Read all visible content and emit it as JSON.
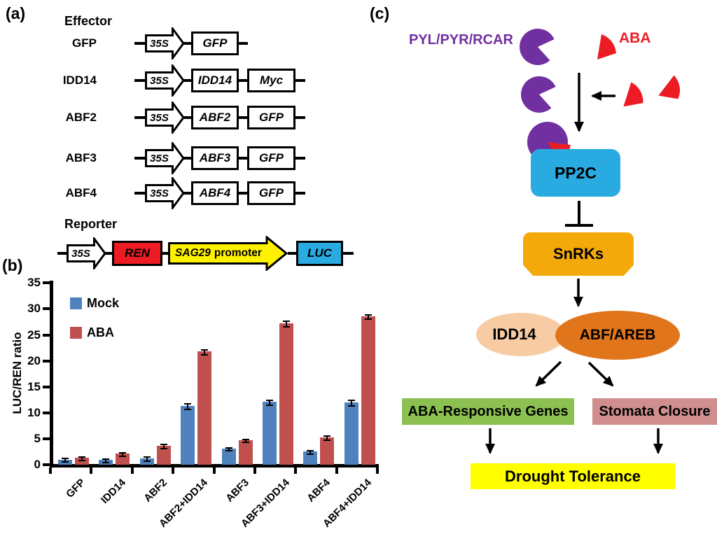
{
  "colors": {
    "bar_mock": "#4F81BD",
    "bar_aba": "#C0504D",
    "bright_red": "#ED1C24",
    "cyan_blue": "#29ABE2",
    "construct_yellow": "#FFF200",
    "purple": "#7030A0",
    "snrks_amber": "#F3A90A",
    "idd14_peach": "#F7CBA4",
    "abf_orange": "#E0751C",
    "genes_green": "#8CC152",
    "stomata_pink": "#D08E8E",
    "drought_yellow": "#FFFF00"
  },
  "panel_a": {
    "label": "(a)",
    "effector_heading": "Effector",
    "rows": [
      {
        "name": "GFP",
        "promoter": "35S",
        "box1": "GFP"
      },
      {
        "name": "IDD14",
        "promoter": "35S",
        "box1": "IDD14",
        "box2": "Myc"
      },
      {
        "name": "ABF2",
        "promoter": "35S",
        "box1": "ABF2",
        "box2": "GFP"
      },
      {
        "name": "ABF3",
        "promoter": "35S",
        "box1": "ABF3",
        "box2": "GFP"
      },
      {
        "name": "ABF4",
        "promoter": "35S",
        "box1": "ABF4",
        "box2": "GFP"
      }
    ],
    "reporter_heading": "Reporter",
    "reporter": {
      "promoter": "35S",
      "box1": "REN",
      "arrow_gene": "SAG29",
      "arrow_word": "promoter",
      "box2": "LUC"
    }
  },
  "panel_b": {
    "label": "(b)"
  },
  "chart_data": {
    "type": "bar",
    "title": "",
    "xlabel": "",
    "ylabel": "LUC/REN ratio",
    "ylim": [
      0,
      35
    ],
    "yticks": [
      0,
      5,
      10,
      15,
      20,
      25,
      30,
      35
    ],
    "grid": false,
    "legend_position": "top-left-inside",
    "categories": [
      "GFP",
      "IDD14",
      "ABF2",
      "ABF2+IDD14",
      "ABF3",
      "ABF3+IDD14",
      "ABF4",
      "ABF4+IDD14"
    ],
    "series": [
      {
        "name": "Mock",
        "color": "#4F81BD",
        "values": [
          1.0,
          0.9,
          1.2,
          11.3,
          3.1,
          12.1,
          2.5,
          12.0
        ],
        "errors": [
          0.3,
          0.3,
          0.35,
          0.5,
          0.25,
          0.5,
          0.3,
          0.5
        ]
      },
      {
        "name": "ABA",
        "color": "#C0504D",
        "values": [
          1.3,
          2.1,
          3.6,
          21.8,
          4.7,
          27.2,
          5.2,
          28.6
        ],
        "errors": [
          0.3,
          0.35,
          0.4,
          0.45,
          0.3,
          0.5,
          0.4,
          0.4
        ]
      }
    ]
  },
  "panel_c": {
    "label": "(c)",
    "receptor": "PYL/PYR/RCAR",
    "aba": "ABA",
    "pp2c": "PP2C",
    "snrks": "SnRKs",
    "idd14": "IDD14",
    "abf_areb": "ABF/AREB",
    "genes": "ABA-Responsive Genes",
    "stomata": "Stomata Closure",
    "drought": "Drought Tolerance"
  }
}
